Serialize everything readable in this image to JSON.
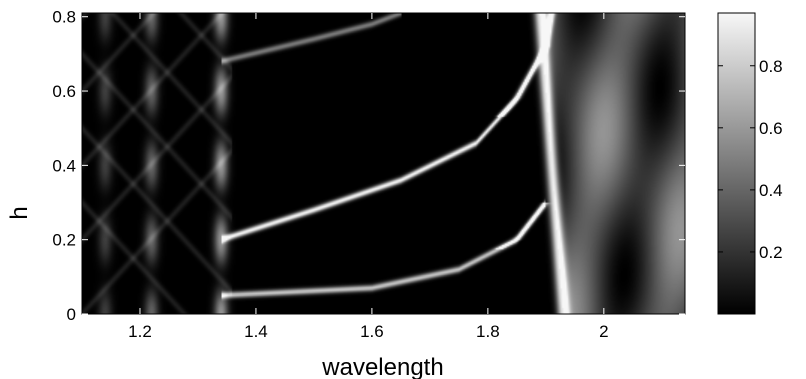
{
  "chart_data": {
    "type": "heatmap",
    "title": "",
    "xlabel": "wavelength",
    "ylabel": "h",
    "xlim": [
      1.1,
      2.14
    ],
    "ylim": [
      0,
      0.81
    ],
    "x_ticks": [
      1.2,
      1.4,
      1.6,
      1.8,
      2
    ],
    "x_tick_labels": [
      "1.2",
      "1.4",
      "1.6",
      "1.8",
      "2"
    ],
    "y_ticks": [
      0,
      0.2,
      0.4,
      0.6,
      0.8
    ],
    "y_tick_labels": [
      "0",
      "0.2",
      "0.4",
      "0.6",
      "0.8"
    ],
    "colormap": "gray",
    "colorbar": {
      "clim": [
        0,
        0.97
      ],
      "ticks": [
        0.2,
        0.4,
        0.6,
        0.8
      ],
      "tick_labels": [
        "0.2",
        "0.4",
        "0.6",
        "0.8"
      ]
    },
    "features": {
      "vertical_bands": [
        {
          "x": 1.14,
          "intensity": 0.25
        },
        {
          "x": 1.22,
          "intensity": 0.4
        },
        {
          "x": 1.34,
          "intensity": 0.6
        }
      ],
      "branches": [
        {
          "points": [
            [
              1.34,
              0.05
            ],
            [
              1.6,
              0.07
            ],
            [
              1.75,
              0.12
            ],
            [
              1.85,
              0.2
            ],
            [
              1.9,
              0.3
            ]
          ],
          "intensity": 0.8
        },
        {
          "points": [
            [
              1.34,
              0.2
            ],
            [
              1.5,
              0.28
            ],
            [
              1.65,
              0.36
            ],
            [
              1.78,
              0.46
            ],
            [
              1.85,
              0.58
            ],
            [
              1.9,
              0.72
            ],
            [
              1.91,
              0.81
            ]
          ],
          "intensity": 1.0
        },
        {
          "points": [
            [
              1.34,
              0.68
            ],
            [
              1.5,
              0.74
            ],
            [
              1.6,
              0.78
            ],
            [
              1.65,
              0.81
            ]
          ],
          "intensity": 0.5
        }
      ],
      "bright_edge": {
        "x_at_bottom": 1.93,
        "x_at_top": 1.89,
        "intensity": 0.95
      },
      "bright_region": {
        "x_from": 1.93,
        "x_to": 2.14,
        "mean_intensity": 0.6
      }
    }
  }
}
